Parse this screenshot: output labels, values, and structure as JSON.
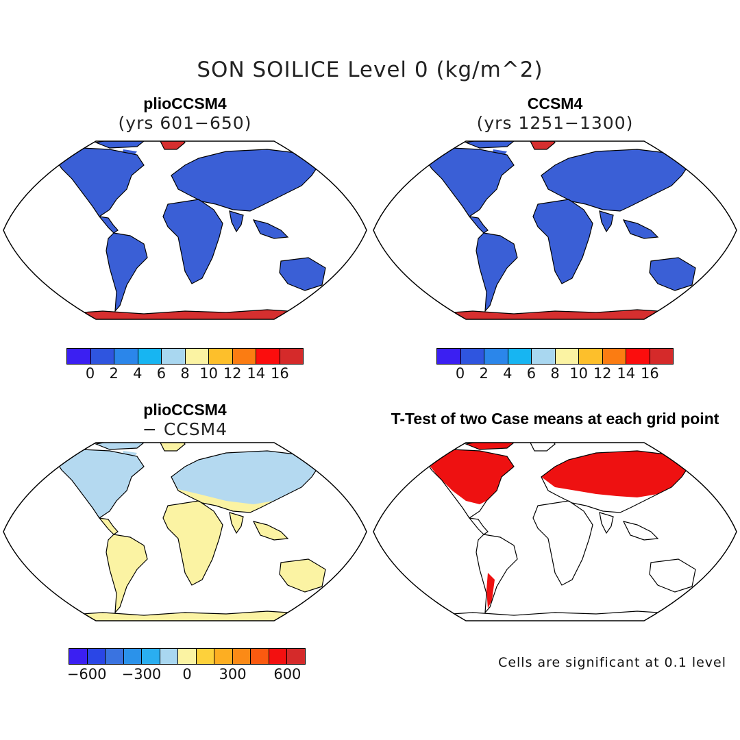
{
  "title": "SON SOILICE Level 0 (kg/m^2)",
  "panels": [
    {
      "id": "plio",
      "title_line1": "plioCCSM4",
      "title_line2": "(yrs 601−650)",
      "ocean_color": "#ffffff",
      "land_color": "#3a5fd6",
      "antarctica_color": "#d62f2f",
      "greenland_color": "#d62f2f"
    },
    {
      "id": "ccsm",
      "title_line1": "CCSM4",
      "title_line2": "(yrs 1251−1300)",
      "ocean_color": "#ffffff",
      "land_color": "#3a5fd6",
      "antarctica_color": "#d62f2f",
      "greenland_color": "#d62f2f"
    },
    {
      "id": "diff",
      "title_line1": "plioCCSM4",
      "title_line2": "− CCSM4",
      "ocean_color": "#ffffff",
      "land_color": "#fbf3a3",
      "north_color": "#b4d9f0",
      "antarctica_color": "#fbf3a3"
    },
    {
      "id": "ttest",
      "title_line1": "T-Test of two Case means at each grid point",
      "ocean_color": "#ffffff",
      "land_color": "#ffffff",
      "significant_color": "#ee1111"
    }
  ],
  "colorbar_abs": {
    "colors": [
      "#3b1ff2",
      "#2f55df",
      "#2b86ea",
      "#17b5f2",
      "#a9d7f0",
      "#fbf3a3",
      "#fdbf2b",
      "#fb7c12",
      "#fb0d0d",
      "#d52a2a"
    ],
    "tick_labels": [
      "0",
      "2",
      "4",
      "6",
      "8",
      "10",
      "12",
      "14",
      "16"
    ]
  },
  "colorbar_diff": {
    "colors": [
      "#3b1ff2",
      "#2a46e6",
      "#3a73e0",
      "#2b92ea",
      "#2aaef0",
      "#a9d7f0",
      "#fbf3a3",
      "#fdd13b",
      "#fdae22",
      "#fb8a16",
      "#fb5a10",
      "#f31010",
      "#d52a2a"
    ],
    "tick_labels": [
      "−600",
      "−300",
      "0",
      "300",
      "600"
    ]
  },
  "footnote": "Cells are significant at 0.1 level"
}
